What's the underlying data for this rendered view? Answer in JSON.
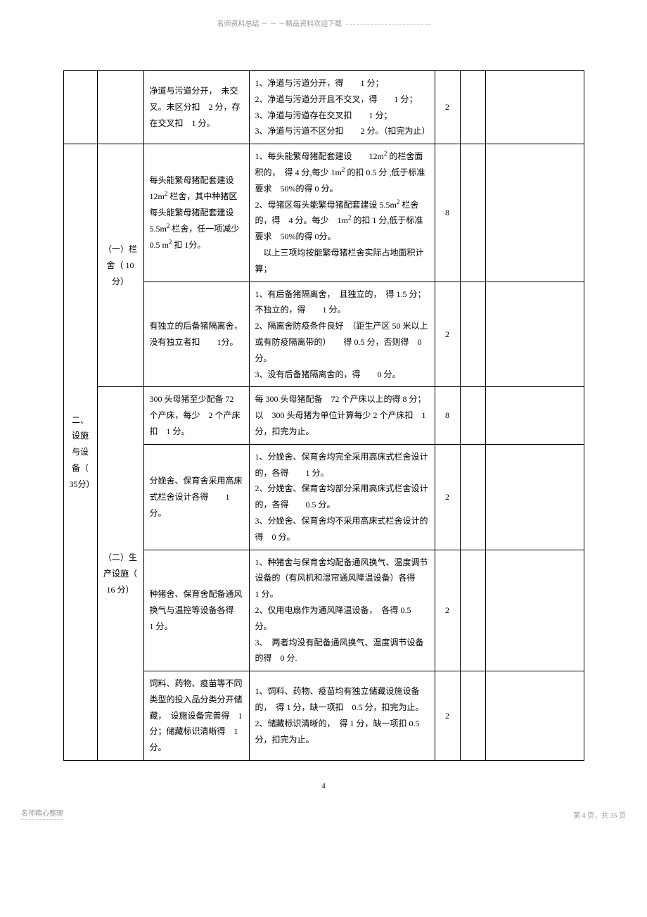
{
  "header": "名师资料总结 － － －精品资料欢迎下载",
  "table": {
    "rows": [
      {
        "colA": "",
        "colB": "",
        "colC": "净道与污道分开，　未交叉。未区分扣　2 分，存在交叉扣　1 分。",
        "colD": "1、净道与污道分开，得　　1 分；\n2、净道与污道分开且不交叉，得　　1 分；\n3、净道与污道存在交叉扣　　1 分；\n3、净道与污道不区分扣　　2 分。（扣完为止）",
        "colE": "2",
        "colF": "",
        "colG": ""
      },
      {
        "colA": "二、设施与设备（ 35分）",
        "colB": "（一）栏舍（ 10 分）",
        "colC": "每头能繁母猪配套建设 12m² 栏舍，其中种猪区每头能繁母猪配套建设　5.5m² 栏舍，任一项减少　0.5 m² 扣 1分。",
        "colD": "1、每头能繁母猪配套建设　　12m² 的栏舍面积的，　得 4 分,每少 1m² 的扣 0.5 分 ,低于标准要求　50%的得 0 分。\n2、母猪区每头能繁母猪配套建设 5.5m² 栏舍的，得　4 分。每少　1m² 的扣 1 分,低于标准要求　50%的得 0分。\n　以上三项均按能繁母猪栏舍实际占地面积计算；",
        "colE": "8",
        "colF": "",
        "colG": ""
      },
      {
        "colA": "",
        "colB": "",
        "colC": "有独立的后备猪隔离舍，没有独立者扣　　1分。",
        "colD": "1、有后备猪隔离舍，　且独立的，　得 1.5 分；不独立的，得　　1 分。\n2、隔离舍防疫条件良好　（距生产区 50 米以上或有防疫隔离带的）　　得 0.5 分，否则得　0 分。\n3、没有后备猪隔离舍的，得　　0 分。",
        "colE": "2",
        "colF": "",
        "colG": ""
      },
      {
        "colA": "",
        "colB": "（二）生产设施（ 16 分）",
        "colC": "300 头母猪至少配备 72 个产床，每少　2 个产床扣　1 分。",
        "colD": "每 300 头母猪配备　72 个产床以上的得 8 分；以　300 头母猪为单位计算每少 2 个产床扣　1 分，扣完为止。",
        "colE": "8",
        "colF": "",
        "colG": ""
      },
      {
        "colA": "",
        "colB": "",
        "colC": "分娩舍、保育舍采用高床式栏舍设计各得　　1分。",
        "colD": "1、分娩舍、保育舍均完全采用高床式栏舍设计的，各得　　1 分。\n2、分娩舍、保育舍均部分采用高床式栏舍设计的，各得　　0.5 分。\n3、分娩舍、保育舍均不采用高床式栏舍设计的得　0 分。",
        "colE": "2",
        "colF": "",
        "colG": ""
      },
      {
        "colA": "",
        "colB": "",
        "colC": "种猪舍、保育舍配备通风换气与温控等设备各得　1 分。",
        "colD": "1、种猪舍与保育舍均配备通风换气、温度调节设备的（有风机和湿帘通风降温设备）各得　　1 分。\n2、仅用电扇作为通风降温设备，　各得 0.5 分。\n3、　两者均没有配备通风换气、温度调节设备的得　0 分.",
        "colE": "2",
        "colF": "",
        "colG": ""
      },
      {
        "colA": "",
        "colB": "",
        "colC": "饲料、药物、疫苗等不同类型的投入品分类分开储藏，　设施设备完善得　1 分；储藏标识清晰得　1 分。",
        "colD": "1、饲料、药物、疫苗均有独立储藏设施设备的，　得 1 分，缺一项扣　0.5 分，扣完为止。\n2、储藏标识清晰的，　得 1 分，缺一项扣 0.5 分，扣完为止。",
        "colE": "2",
        "colF": "",
        "colG": ""
      }
    ]
  },
  "pageNum": "4",
  "footerLeft": "名师精心整理",
  "footerRight": "第 4 页，共 35 页"
}
